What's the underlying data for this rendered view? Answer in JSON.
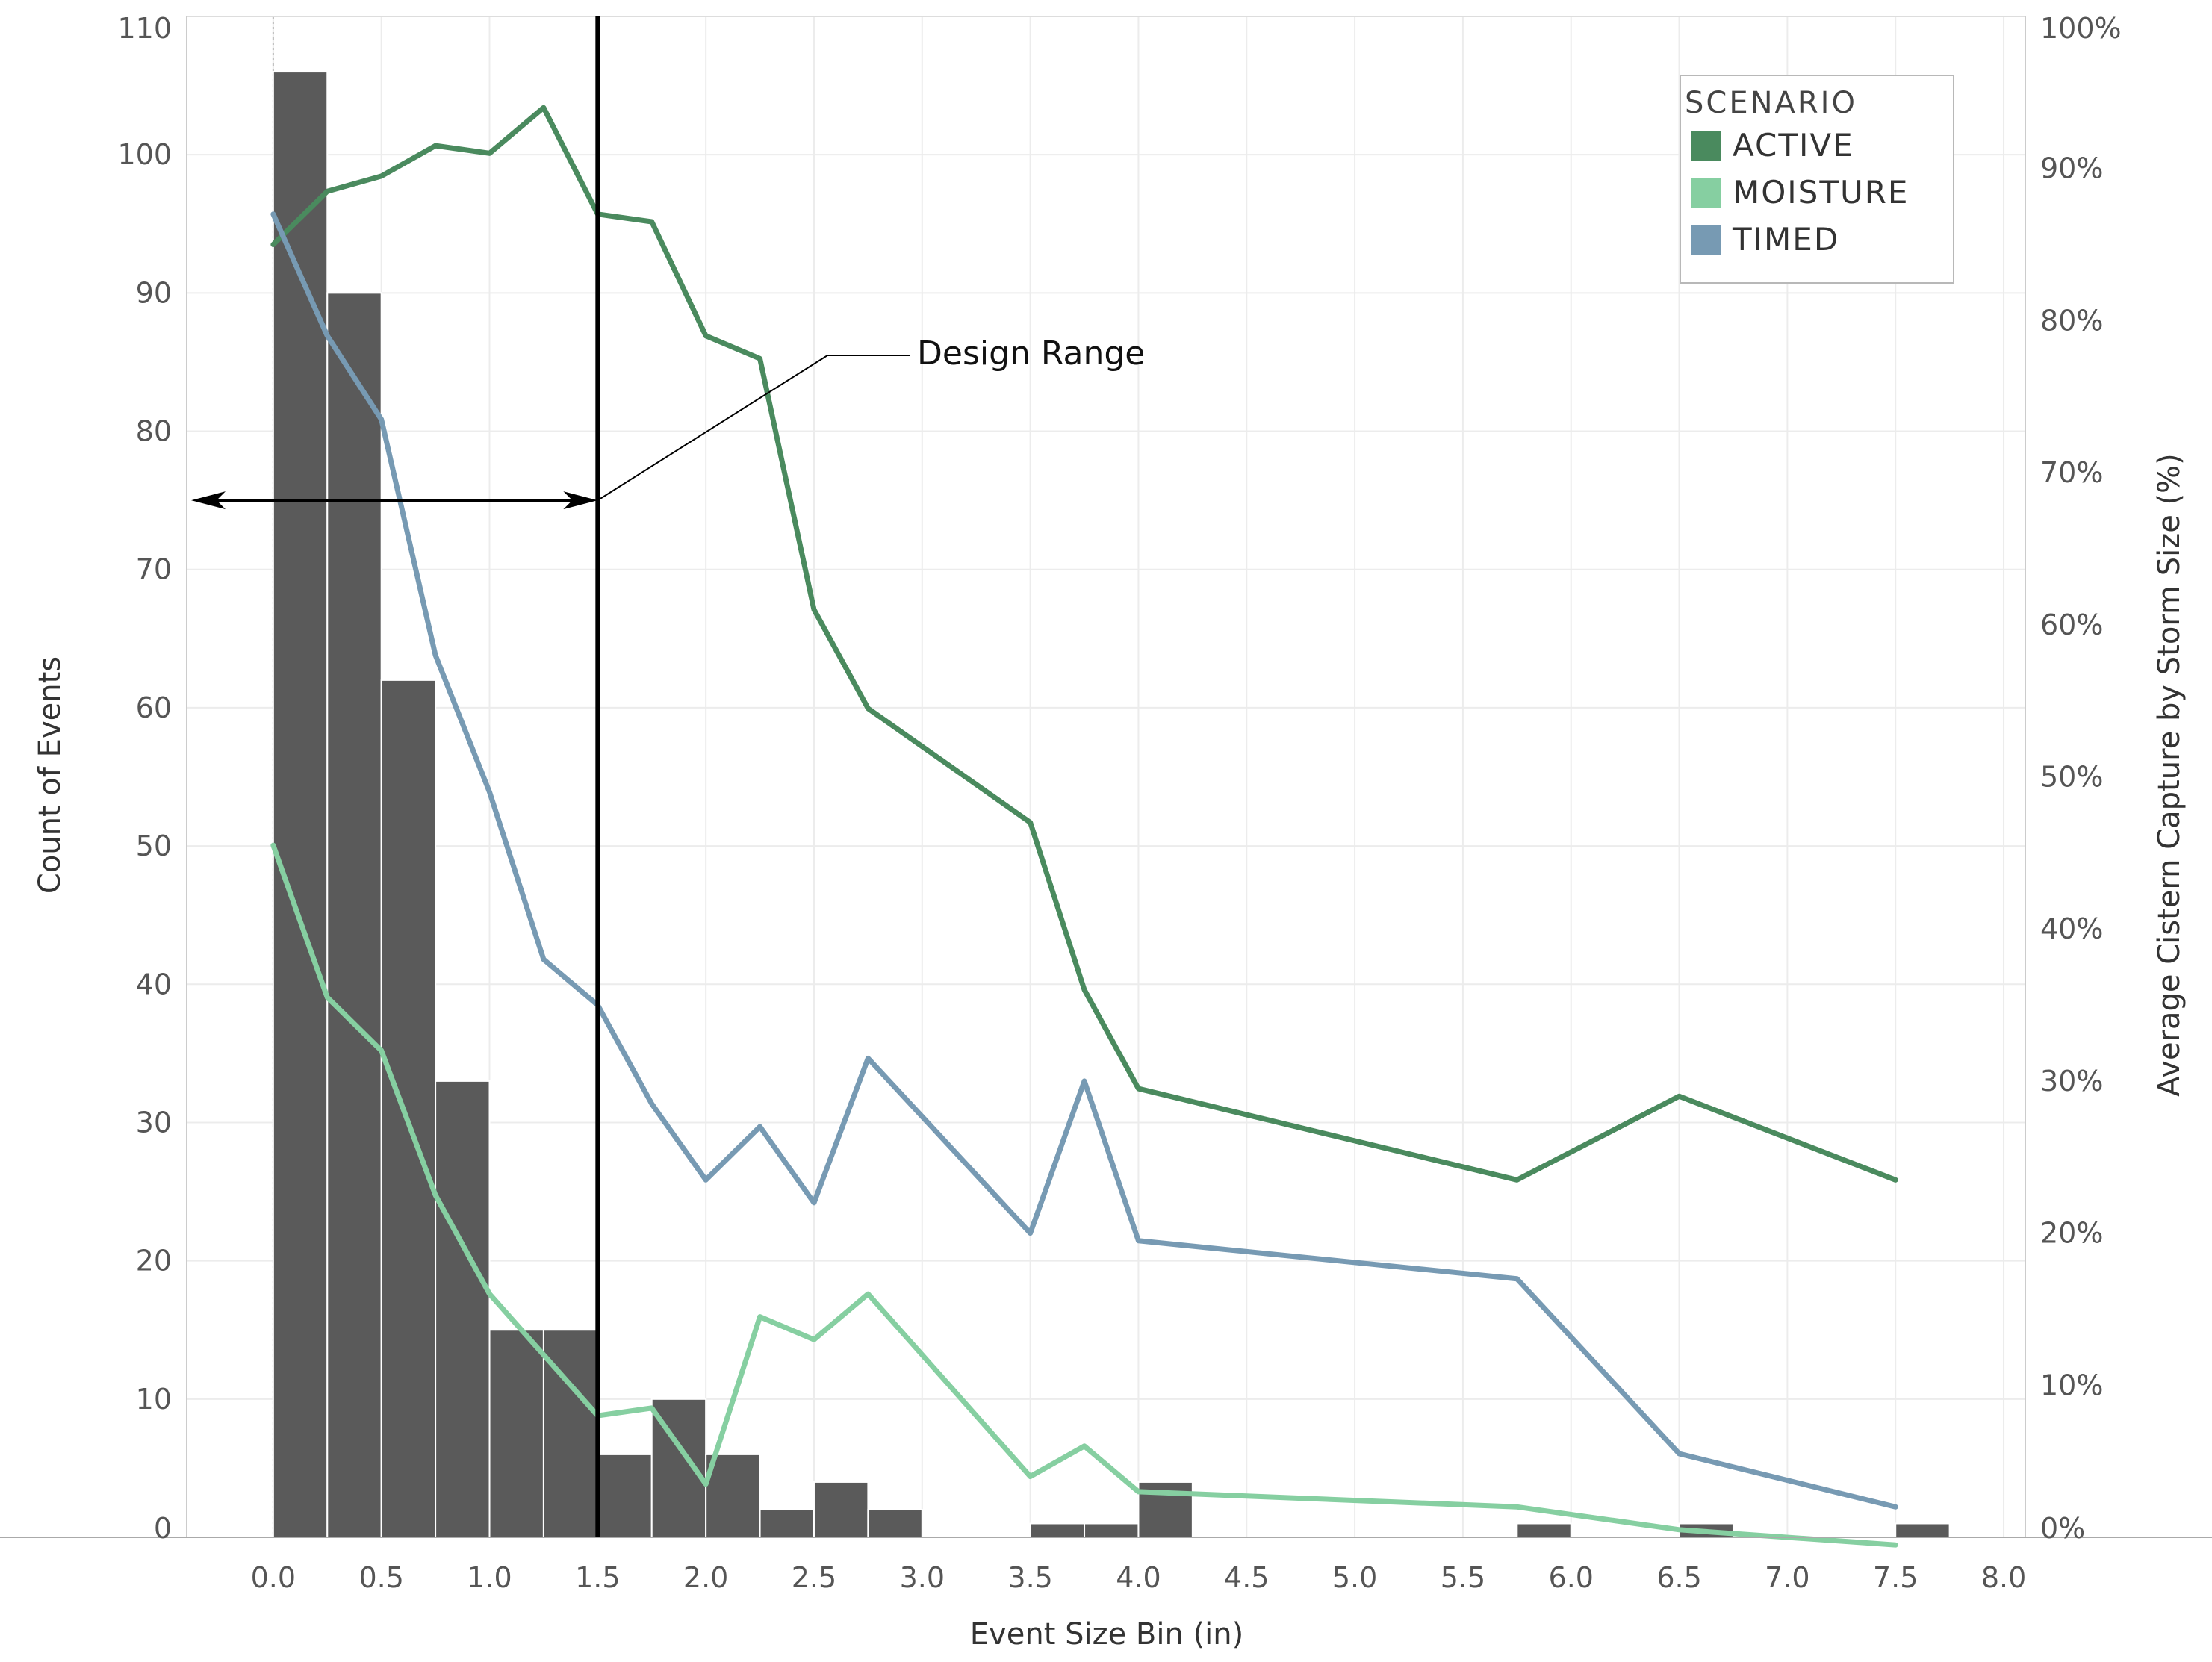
{
  "chart_data": {
    "type": "bar",
    "title": "",
    "xlabel": "Event Size Bin (in)",
    "ylabel": "Count of Events",
    "y2label": "Average Cistern Capture by Storm Size (%)",
    "xlim": [
      -0.4,
      8.1
    ],
    "ylim": [
      0,
      110
    ],
    "y2lim": [
      0,
      100
    ],
    "x_ticks": [
      "0.0",
      "0.5",
      "1.0",
      "1.5",
      "2.0",
      "2.5",
      "3.0",
      "3.5",
      "4.0",
      "4.5",
      "5.0",
      "5.5",
      "6.0",
      "6.5",
      "7.0",
      "7.5",
      "8.0"
    ],
    "x_tick_values": [
      0,
      0.5,
      1,
      1.5,
      2,
      2.5,
      3,
      3.5,
      4,
      4.5,
      5,
      5.5,
      6,
      6.5,
      7,
      7.5,
      8
    ],
    "y_ticks": [
      "0",
      "10",
      "20",
      "30",
      "40",
      "50",
      "60",
      "70",
      "80",
      "90",
      "100",
      "110"
    ],
    "y_tick_values": [
      0,
      10,
      20,
      30,
      40,
      50,
      60,
      70,
      80,
      90,
      100,
      110
    ],
    "y2_ticks": [
      "0%",
      "10%",
      "20%",
      "30%",
      "40%",
      "50%",
      "60%",
      "70%",
      "80%",
      "90%",
      "100%"
    ],
    "y2_tick_values": [
      0,
      10,
      20,
      30,
      40,
      50,
      60,
      70,
      80,
      90,
      100
    ],
    "bar_width": 0.25,
    "bars": [
      {
        "x": 0.0,
        "count": 106
      },
      {
        "x": 0.25,
        "count": 90
      },
      {
        "x": 0.5,
        "count": 62
      },
      {
        "x": 0.75,
        "count": 33
      },
      {
        "x": 1.0,
        "count": 15
      },
      {
        "x": 1.25,
        "count": 15
      },
      {
        "x": 1.5,
        "count": 6
      },
      {
        "x": 1.75,
        "count": 10
      },
      {
        "x": 2.0,
        "count": 6
      },
      {
        "x": 2.25,
        "count": 2
      },
      {
        "x": 2.5,
        "count": 4
      },
      {
        "x": 2.75,
        "count": 2
      },
      {
        "x": 3.5,
        "count": 1
      },
      {
        "x": 3.75,
        "count": 1
      },
      {
        "x": 4.0,
        "count": 4
      },
      {
        "x": 5.75,
        "count": 1
      },
      {
        "x": 6.5,
        "count": 1
      },
      {
        "x": 7.5,
        "count": 1
      }
    ],
    "bar_color": "#5a5a5a",
    "legend_title": "SCENARIO",
    "legend_position": "top-right",
    "series": [
      {
        "name": "ACTIVE",
        "color": "#4a8a5e",
        "x": [
          0.0,
          0.25,
          0.5,
          0.75,
          1.0,
          1.25,
          1.5,
          1.75,
          2.0,
          2.25,
          2.5,
          2.75,
          3.5,
          3.75,
          4.0,
          5.75,
          6.5,
          7.5
        ],
        "values": [
          85,
          88.5,
          89.5,
          91.5,
          91,
          94,
          87,
          86.5,
          79,
          77.5,
          61,
          54.5,
          47,
          36,
          29.5,
          23.5,
          29,
          23.5
        ]
      },
      {
        "name": "MOISTURE",
        "color": "#86cfa1",
        "x": [
          0.0,
          0.25,
          0.5,
          0.75,
          1.0,
          1.25,
          1.5,
          1.75,
          2.0,
          2.25,
          2.5,
          2.75,
          3.5,
          3.75,
          4.0,
          5.75,
          6.5,
          7.5
        ],
        "values": [
          45.5,
          35.5,
          32,
          22.5,
          16,
          12,
          8,
          8.5,
          3.5,
          14.5,
          13,
          16,
          4,
          6,
          3,
          2,
          0.5,
          -0.5
        ]
      },
      {
        "name": "TIMED",
        "color": "#779ab3",
        "x": [
          0.0,
          0.25,
          0.5,
          0.75,
          1.0,
          1.25,
          1.5,
          1.75,
          2.0,
          2.25,
          2.5,
          2.75,
          3.5,
          3.75,
          4.0,
          5.75,
          6.5,
          7.5
        ],
        "values": [
          87,
          79,
          73.5,
          58,
          49,
          38,
          35,
          28.5,
          23.5,
          27,
          22,
          31.5,
          20,
          30,
          19.5,
          17,
          5.5,
          2
        ]
      }
    ],
    "annotation": {
      "label": "Design Range",
      "range_start": -0.4,
      "range_end": 1.5,
      "arrow_y": 75,
      "line_x": 1.5
    },
    "grid": true
  }
}
